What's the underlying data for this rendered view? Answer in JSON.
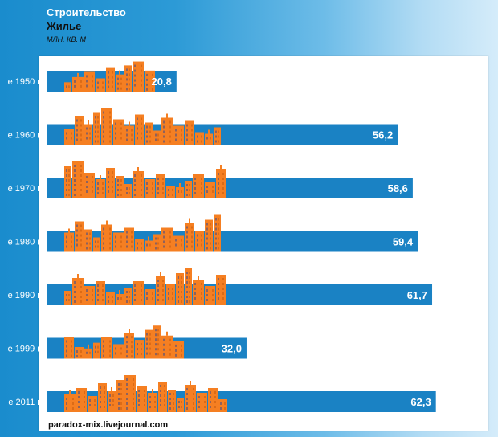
{
  "header": {
    "title": "Строительство",
    "subtitle": "Жилье",
    "units": "МЛН. КВ. М"
  },
  "watermark": "paradox-mix.livejournal.com",
  "colors": {
    "bar": "#1a82c4",
    "building": "#f57f22",
    "building_dark": "#c95e10",
    "window": "#3a4a8c",
    "label_text": "#ffffff"
  },
  "chart_data": {
    "type": "bar",
    "orientation": "horizontal",
    "categories": [
      "е 1950 г.",
      "е 1960 г.",
      "е 1970 г.",
      "е 1980 г.",
      "е 1990 г.",
      "е 1999 г.",
      "е 2011 г."
    ],
    "values": [
      20.8,
      56.2,
      58.6,
      59.4,
      61.7,
      32.0,
      62.3
    ],
    "value_labels": [
      "20,8",
      "56,2",
      "58,6",
      "59,4",
      "61,7",
      "32,0",
      "62,3"
    ],
    "title": "Строительство",
    "subtitle": "Жилье",
    "unit": "МЛН. КВ. М",
    "xlim": [
      0,
      70
    ],
    "grid": false,
    "legend": "none"
  }
}
